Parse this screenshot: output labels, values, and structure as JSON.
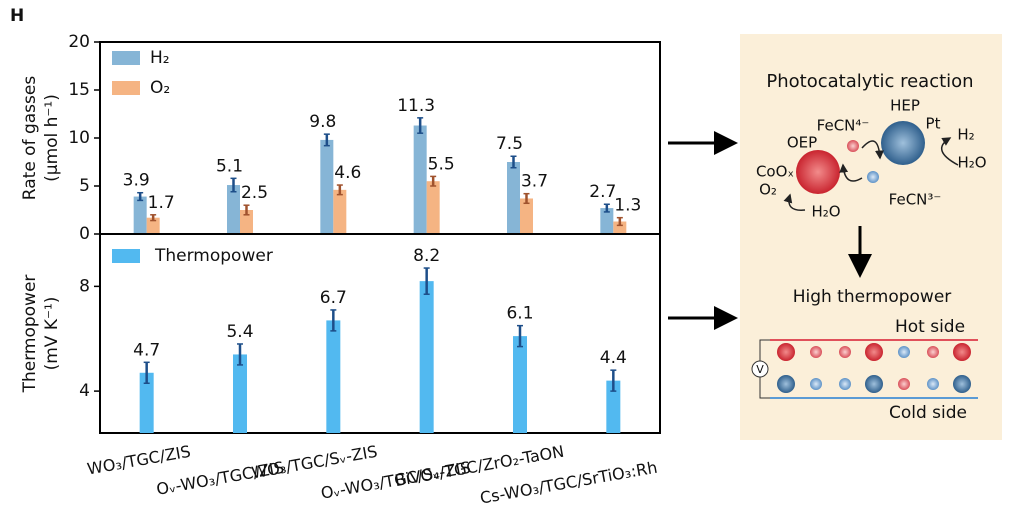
{
  "panel_label": "H",
  "chart_data": [
    {
      "type": "bar",
      "y_label": [
        "Rate of gasses",
        "(μmol h⁻¹)"
      ],
      "ylim": [
        0,
        20
      ],
      "yticks": [
        0,
        5,
        10,
        15,
        20
      ],
      "series": [
        {
          "name": "H₂",
          "color": "#86b5d6",
          "values": [
            3.9,
            5.1,
            9.8,
            11.3,
            7.5,
            2.7
          ],
          "errors": [
            0.4,
            0.7,
            0.6,
            0.8,
            0.6,
            0.4
          ]
        },
        {
          "name": "O₂",
          "color": "#f5b483",
          "values": [
            1.7,
            2.5,
            4.6,
            5.5,
            3.7,
            1.3
          ],
          "errors": [
            0.3,
            0.5,
            0.5,
            0.5,
            0.5,
            0.4
          ]
        }
      ]
    },
    {
      "type": "bar",
      "y_label": [
        "Thermopower",
        "(mV K⁻¹)"
      ],
      "categories": [
        "WO₃/TGC/ZIS",
        "Oᵥ-WO₃/TGC/ZIS",
        "WO₃/TGC/Sᵥ-ZIS",
        "Oᵥ-WO₃/TGC/Sᵥ-ZIS",
        "BiVO₄/TGC/ZrO₂-TaON",
        "Cs-WO₃/TGC/SrTiO₃:Rh"
      ],
      "ylim": [
        2.4,
        10
      ],
      "yticks": [
        4,
        8
      ],
      "series": [
        {
          "name": "Thermopower",
          "color": "#52b9f0",
          "values": [
            4.7,
            5.4,
            6.7,
            8.2,
            6.1,
            4.4
          ],
          "errors": [
            0.4,
            0.4,
            0.4,
            0.5,
            0.4,
            0.4
          ]
        }
      ]
    }
  ],
  "diagram": {
    "title": "Photocatalytic reaction",
    "hep": "HEP",
    "fecn4": "FeCN⁴⁻",
    "pt": "Pt",
    "oep": "OEP",
    "h2": "H₂",
    "h2o_right": "H₂O",
    "coox": "CoOₓ",
    "o2": "O₂",
    "h2o_left": "H₂O",
    "fecn3": "FeCN³⁻",
    "thermo": "High thermopower",
    "hot": "Hot side",
    "cold": "Cold side",
    "voltmeter": "V"
  }
}
